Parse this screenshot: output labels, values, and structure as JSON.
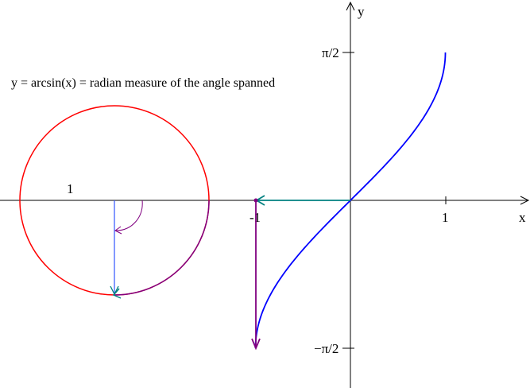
{
  "caption": "y = arcsin(x) = radian measure of the angle spanned",
  "axes": {
    "x_label": "x",
    "y_label": "y",
    "x_ticks": [
      "-1",
      "1"
    ],
    "y_ticks": [
      "π/2",
      "−π/2"
    ]
  },
  "circle": {
    "radius_label": "1"
  },
  "colors": {
    "axes": "#000000",
    "circle": "#ff0000",
    "curve": "#0000ff",
    "arc": "#800080",
    "horizontal_arrow": "#008080",
    "radius_line": "#4060ff"
  }
}
